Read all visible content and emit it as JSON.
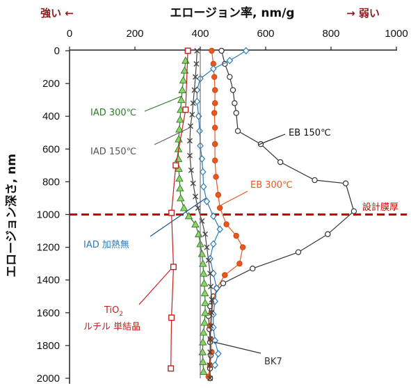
{
  "chart_data": {
    "type": "line",
    "title": "エロージョン率, nm/g",
    "xlabel": "エロージョン率, nm/g",
    "ylabel": "エロージョン深さ, nm",
    "xlim": [
      0,
      1000
    ],
    "ylim": [
      0,
      2000
    ],
    "y_inverted": true,
    "x_axis_position": "top",
    "grid": "none",
    "x_ticks": [
      "0",
      "200",
      "400",
      "600",
      "800",
      "1000"
    ],
    "y_ticks": [
      "0",
      "200",
      "400",
      "600",
      "800",
      "1000",
      "1200",
      "1400",
      "1600",
      "1800",
      "2000"
    ],
    "strong_label": "強い ←",
    "weak_label": "→ 弱い",
    "reference_line": {
      "y": 1000,
      "label": "設計膜厚",
      "color": "#cc0000"
    },
    "series": [
      {
        "name": "EB 150℃",
        "color": "#333333",
        "marker": "circle-open",
        "points": [
          [
            465,
            0
          ],
          [
            475,
            80
          ],
          [
            490,
            160
          ],
          [
            500,
            240
          ],
          [
            505,
            320
          ],
          [
            510,
            380
          ],
          [
            515,
            490
          ],
          [
            585,
            570
          ],
          [
            645,
            680
          ],
          [
            750,
            790
          ],
          [
            845,
            810
          ],
          [
            870,
            980
          ],
          [
            790,
            1120
          ],
          [
            700,
            1230
          ],
          [
            560,
            1330
          ],
          [
            470,
            1420
          ],
          [
            440,
            1500
          ],
          [
            430,
            1560
          ],
          [
            425,
            1620
          ],
          [
            428,
            1700
          ],
          [
            430,
            1780
          ],
          [
            432,
            1860
          ],
          [
            430,
            1940
          ],
          [
            430,
            2000
          ]
        ]
      },
      {
        "name": "EB 300℃",
        "color": "#e8571e",
        "marker": "circle-filled",
        "points": [
          [
            435,
            0
          ],
          [
            440,
            80
          ],
          [
            443,
            160
          ],
          [
            445,
            240
          ],
          [
            445,
            320
          ],
          [
            443,
            380
          ],
          [
            445,
            470
          ],
          [
            445,
            570
          ],
          [
            445,
            670
          ],
          [
            448,
            770
          ],
          [
            455,
            880
          ],
          [
            460,
            960
          ],
          [
            480,
            1060
          ],
          [
            510,
            1130
          ],
          [
            530,
            1200
          ],
          [
            520,
            1300
          ],
          [
            475,
            1370
          ],
          [
            450,
            1450
          ],
          [
            440,
            1530
          ],
          [
            435,
            1600
          ],
          [
            430,
            1680
          ],
          [
            432,
            1760
          ],
          [
            435,
            1840
          ],
          [
            430,
            1920
          ],
          [
            425,
            1990
          ]
        ]
      },
      {
        "name": "IAD 加熱無",
        "color": "#2a7ab8",
        "marker": "diamond-open",
        "points": [
          [
            540,
            0
          ],
          [
            490,
            60
          ],
          [
            440,
            110
          ],
          [
            400,
            170
          ],
          [
            390,
            240
          ],
          [
            390,
            310
          ],
          [
            395,
            400
          ],
          [
            398,
            490
          ],
          [
            400,
            580
          ],
          [
            405,
            660
          ],
          [
            408,
            740
          ],
          [
            410,
            830
          ],
          [
            420,
            920
          ],
          [
            440,
            1010
          ],
          [
            460,
            1090
          ],
          [
            440,
            1180
          ],
          [
            430,
            1270
          ],
          [
            440,
            1360
          ],
          [
            450,
            1450
          ],
          [
            445,
            1530
          ],
          [
            440,
            1610
          ],
          [
            440,
            1690
          ],
          [
            445,
            1770
          ],
          [
            455,
            1850
          ],
          [
            445,
            1920
          ]
        ]
      },
      {
        "name": "IAD 150℃",
        "color": "#444444",
        "marker": "x",
        "points": [
          [
            390,
            0
          ],
          [
            388,
            80
          ],
          [
            385,
            160
          ],
          [
            382,
            240
          ],
          [
            378,
            320
          ],
          [
            375,
            390
          ],
          [
            370,
            460
          ],
          [
            368,
            550
          ],
          [
            368,
            640
          ],
          [
            372,
            730
          ],
          [
            378,
            810
          ],
          [
            385,
            890
          ],
          [
            393,
            960
          ],
          [
            405,
            1040
          ],
          [
            415,
            1120
          ],
          [
            420,
            1200
          ],
          [
            425,
            1280
          ],
          [
            430,
            1360
          ],
          [
            432,
            1440
          ],
          [
            435,
            1520
          ],
          [
            435,
            1600
          ],
          [
            433,
            1680
          ],
          [
            430,
            1760
          ],
          [
            430,
            1840
          ],
          [
            428,
            1920
          ],
          [
            430,
            2000
          ]
        ]
      },
      {
        "name": "IAD 300℃",
        "color": "#2f7a2a",
        "marker": "triangle",
        "fill": "#8fd46a",
        "points": [
          [
            355,
            60
          ],
          [
            352,
            120
          ],
          [
            348,
            180
          ],
          [
            345,
            240
          ],
          [
            342,
            300
          ],
          [
            340,
            360
          ],
          [
            338,
            420
          ],
          [
            336,
            480
          ],
          [
            334,
            540
          ],
          [
            333,
            600
          ],
          [
            333,
            660
          ],
          [
            334,
            720
          ],
          [
            336,
            780
          ],
          [
            338,
            840
          ],
          [
            340,
            900
          ],
          [
            350,
            960
          ],
          [
            365,
            1010
          ],
          [
            385,
            1060
          ],
          [
            395,
            1120
          ],
          [
            400,
            1180
          ],
          [
            405,
            1240
          ],
          [
            408,
            1300
          ],
          [
            410,
            1360
          ],
          [
            412,
            1420
          ],
          [
            414,
            1480
          ],
          [
            415,
            1540
          ],
          [
            415,
            1600
          ],
          [
            413,
            1660
          ],
          [
            410,
            1720
          ],
          [
            408,
            1780
          ],
          [
            407,
            1840
          ],
          [
            408,
            1900
          ],
          [
            410,
            1960
          ]
        ]
      },
      {
        "name": "BK7",
        "color": "#777777",
        "marker": "none",
        "points": [
          [
            400,
            0
          ],
          [
            400,
            2000
          ]
        ]
      },
      {
        "name": "TiO₂ ルチル単結晶",
        "color": "#c41e1e",
        "marker": "square-open",
        "points": [
          [
            362,
            0
          ],
          [
            355,
            360
          ],
          [
            325,
            700
          ],
          [
            312,
            990
          ],
          [
            318,
            1320
          ],
          [
            312,
            1630
          ],
          [
            310,
            1940
          ]
        ]
      }
    ]
  },
  "annotations": {
    "iad300": "IAD 300℃",
    "iad150": "IAD 150℃",
    "eb150": "EB 150℃",
    "eb300": "EB 300℃",
    "design": "設計膜厚",
    "iadnoheat": "IAD 加熱無",
    "tio2_line1": "TiO",
    "tio2_sub": "2",
    "tio2_line2": "ルチル 単結晶",
    "bk7": "BK7"
  }
}
